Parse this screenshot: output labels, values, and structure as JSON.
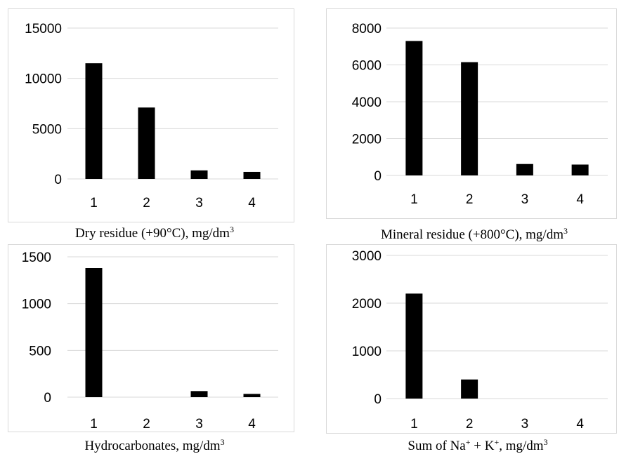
{
  "bar_color": "#000000",
  "grid_color": "#d9d9d9",
  "chart_data": [
    {
      "type": "bar",
      "categories": [
        "1",
        "2",
        "3",
        "4"
      ],
      "values": [
        11500,
        7100,
        850,
        700
      ],
      "caption": {
        "main": "Dry residue (+90°C), mg/dm",
        "sup": "3",
        "tail": ""
      },
      "yticks": [
        "0",
        "5000",
        "10000",
        "15000"
      ],
      "ylim": [
        0,
        15000
      ],
      "grid": true
    },
    {
      "type": "bar",
      "categories": [
        "1",
        "2",
        "3",
        "4"
      ],
      "values": [
        7300,
        6150,
        620,
        590
      ],
      "caption": {
        "main": "Mineral residue (+800°C), mg/dm",
        "sup": "3",
        "tail": ""
      },
      "yticks": [
        "0",
        "2000",
        "4000",
        "6000",
        "8000"
      ],
      "ylim": [
        0,
        8000
      ],
      "grid": true
    },
    {
      "type": "bar",
      "categories": [
        "1",
        "2",
        "3",
        "4"
      ],
      "values": [
        1380,
        0,
        65,
        35
      ],
      "caption": {
        "main": "Hydrocarbonates, mg/dm",
        "sup": "3",
        "tail": ""
      },
      "yticks": [
        "0",
        "500",
        "1000",
        "1500"
      ],
      "ylim": [
        0,
        1500
      ],
      "grid": true
    },
    {
      "type": "bar",
      "categories": [
        "1",
        "2",
        "3",
        "4"
      ],
      "values": [
        2200,
        400,
        0,
        0
      ],
      "caption": {
        "main": "Sum of Na",
        "sup": "+",
        "mid": " + K",
        "sup2": "+",
        "tail": ", mg/dm",
        "sup3": "3"
      },
      "yticks": [
        "0",
        "1000",
        "2000",
        "3000"
      ],
      "ylim": [
        0,
        3000
      ],
      "grid": true
    }
  ]
}
